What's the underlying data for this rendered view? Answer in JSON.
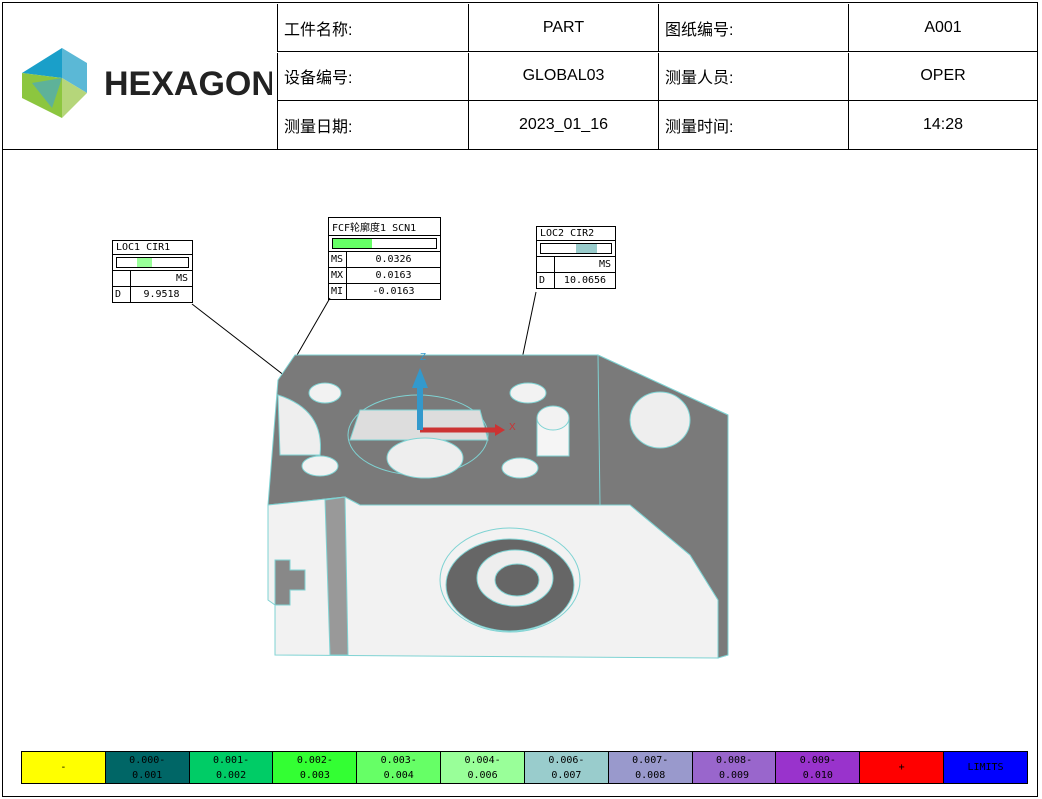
{
  "header": {
    "logo_text": "HEXAGON",
    "rows": [
      {
        "label1": "工件名称:",
        "value1": "PART",
        "label2": "图纸编号:",
        "value2": "A001"
      },
      {
        "label1": "设备编号:",
        "value1": "GLOBAL03",
        "label2": "测量人员:",
        "value2": "OPER"
      },
      {
        "label1": "测量日期:",
        "value1": "2023_01_16",
        "label2": "测量时间:",
        "value2": "14:28"
      }
    ]
  },
  "labels": {
    "loc1": {
      "title": "LOC1 CIR1",
      "col": "MS",
      "key": "D",
      "value": "9.9518",
      "bar_color": "#99ff99"
    },
    "fcf": {
      "title": "FCF轮廓度1 SCN1",
      "bar_color": "#66ff66",
      "rows": [
        {
          "k": "MS",
          "v": "0.0326"
        },
        {
          "k": "MX",
          "v": "0.0163"
        },
        {
          "k": "MI",
          "v": "-0.0163"
        }
      ]
    },
    "loc2": {
      "title": "LOC2 CIR2",
      "col": "MS",
      "key": "D",
      "value": "10.0656",
      "bar_color": "#99cccc"
    }
  },
  "axes": {
    "x": "X",
    "z": "Z"
  },
  "legend": [
    {
      "text": "-",
      "color": "#ffff00"
    },
    {
      "text": "0.000-\n0.001",
      "color": "#006666"
    },
    {
      "text": "0.001-\n0.002",
      "color": "#00cc66"
    },
    {
      "text": "0.002-\n0.003",
      "color": "#33ff33"
    },
    {
      "text": "0.003-\n0.004",
      "color": "#66ff66"
    },
    {
      "text": "0.004-\n0.006",
      "color": "#99ff99"
    },
    {
      "text": "0.006-\n0.007",
      "color": "#99cccc"
    },
    {
      "text": "0.007-\n0.008",
      "color": "#9999cc"
    },
    {
      "text": "0.008-\n0.009",
      "color": "#9966cc"
    },
    {
      "text": "0.009-\n0.010",
      "color": "#9933cc"
    },
    {
      "text": "+",
      "color": "#ff0000"
    },
    {
      "text": "LIMITS",
      "color": "#0000ff"
    }
  ]
}
